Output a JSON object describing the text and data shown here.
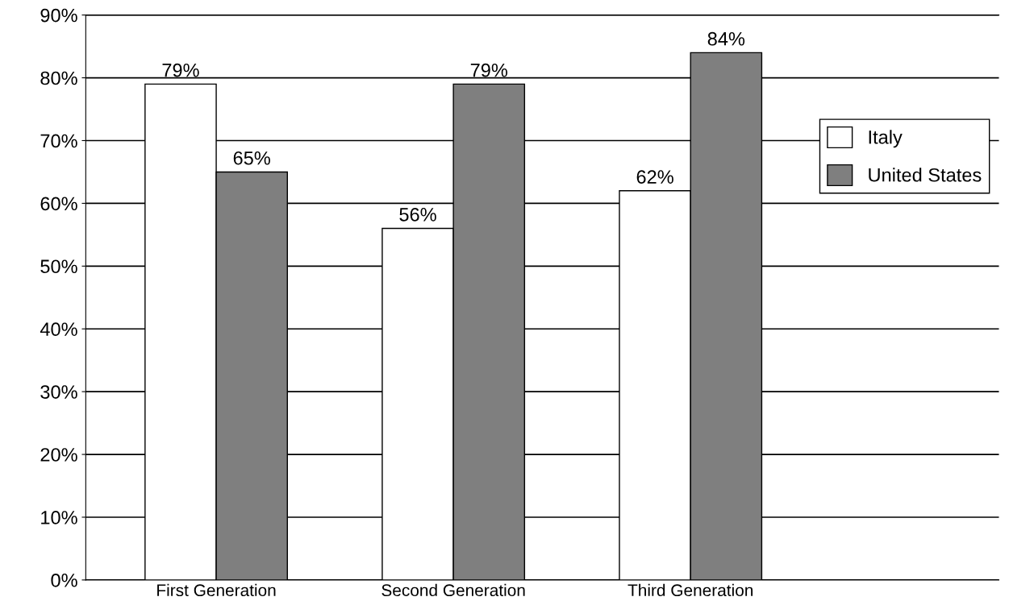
{
  "chart_data": {
    "type": "bar",
    "categories": [
      "First Generation",
      "Second Generation",
      "Third Generation"
    ],
    "series": [
      {
        "name": "Italy",
        "color": "#ffffff",
        "values": [
          79,
          56,
          62
        ],
        "value_labels": [
          "79%",
          "56%",
          "62%"
        ]
      },
      {
        "name": "United States",
        "color": "#7f7f7f",
        "values": [
          65,
          79,
          84
        ],
        "value_labels": [
          "65%",
          "79%",
          "84%"
        ]
      }
    ],
    "ylim": [
      0,
      90
    ],
    "yticks": [
      {
        "value": 0,
        "label": "0%"
      },
      {
        "value": 10,
        "label": "10%"
      },
      {
        "value": 20,
        "label": "20%"
      },
      {
        "value": 30,
        "label": "30%"
      },
      {
        "value": 40,
        "label": "40%"
      },
      {
        "value": 50,
        "label": "50%"
      },
      {
        "value": 60,
        "label": "60%"
      },
      {
        "value": 70,
        "label": "70%"
      },
      {
        "value": 80,
        "label": "80%"
      },
      {
        "value": 90,
        "label": "90%"
      }
    ],
    "grid": "y",
    "legend": "right"
  }
}
